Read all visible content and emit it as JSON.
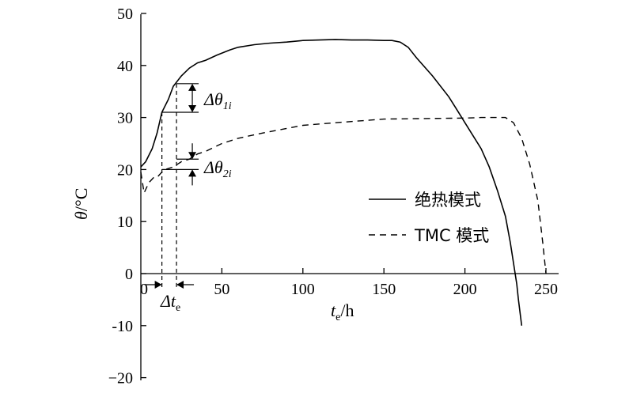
{
  "chart_data": {
    "type": "line",
    "xlim": [
      0,
      250
    ],
    "ylim": [
      -20,
      50
    ],
    "x_ticks": [
      "0",
      "50",
      "100",
      "150",
      "200",
      "250"
    ],
    "y_ticks": [
      "50",
      "40",
      "30",
      "20",
      "10",
      "0",
      "-10",
      "−20"
    ],
    "xlabel": {
      "main": "t",
      "sub": "e",
      "unit": "/h"
    },
    "ylabel": {
      "main": "θ",
      "unit": "/°C"
    },
    "legend_position": "right",
    "series": [
      {
        "name": "绝热模式",
        "style": "solid",
        "x": [
          0,
          3,
          7,
          10,
          13,
          17,
          20,
          25,
          30,
          35,
          40,
          47,
          55,
          60,
          70,
          80,
          90,
          100,
          110,
          120,
          130,
          140,
          150,
          155,
          160,
          165,
          170,
          180,
          190,
          195,
          200,
          205,
          210,
          215,
          220,
          225,
          228,
          230,
          232,
          233,
          235
        ],
        "y": [
          20.5,
          21.5,
          24,
          27,
          31,
          33.5,
          36,
          38,
          39.5,
          40.5,
          41,
          42,
          43,
          43.5,
          44,
          44.3,
          44.5,
          44.8,
          44.9,
          45,
          44.9,
          44.9,
          44.8,
          44.8,
          44.5,
          43.5,
          41.5,
          38,
          34,
          31.5,
          29,
          26.5,
          24,
          20.5,
          16,
          11,
          6,
          2,
          -2,
          -5,
          -10
        ]
      },
      {
        "name": "TMC 模式",
        "style": "dashed",
        "x": [
          0,
          2,
          5,
          8,
          10,
          13,
          15,
          20,
          25,
          30,
          35,
          40,
          50,
          60,
          75,
          100,
          120,
          150,
          175,
          200,
          210,
          220,
          225,
          230,
          235,
          240,
          245,
          248,
          250
        ],
        "y": [
          19.5,
          15.5,
          17.5,
          18.5,
          18.5,
          19.5,
          20,
          20.5,
          21.5,
          22,
          23,
          23.5,
          25,
          26,
          27,
          28.5,
          29,
          29.7,
          29.8,
          29.9,
          30,
          30,
          30,
          29,
          26,
          21,
          14,
          6,
          0
        ]
      }
    ],
    "annotations": {
      "delta_theta_1": {
        "main": "Δθ",
        "sub": "1i",
        "upper": 36.5,
        "lower": 31
      },
      "delta_theta_2": {
        "main": "Δθ",
        "sub": "2i",
        "upper": 22,
        "lower": 20
      },
      "delta_te": {
        "main": "Δt",
        "sub": "e",
        "x_from": 13,
        "x_to": 22
      }
    }
  }
}
